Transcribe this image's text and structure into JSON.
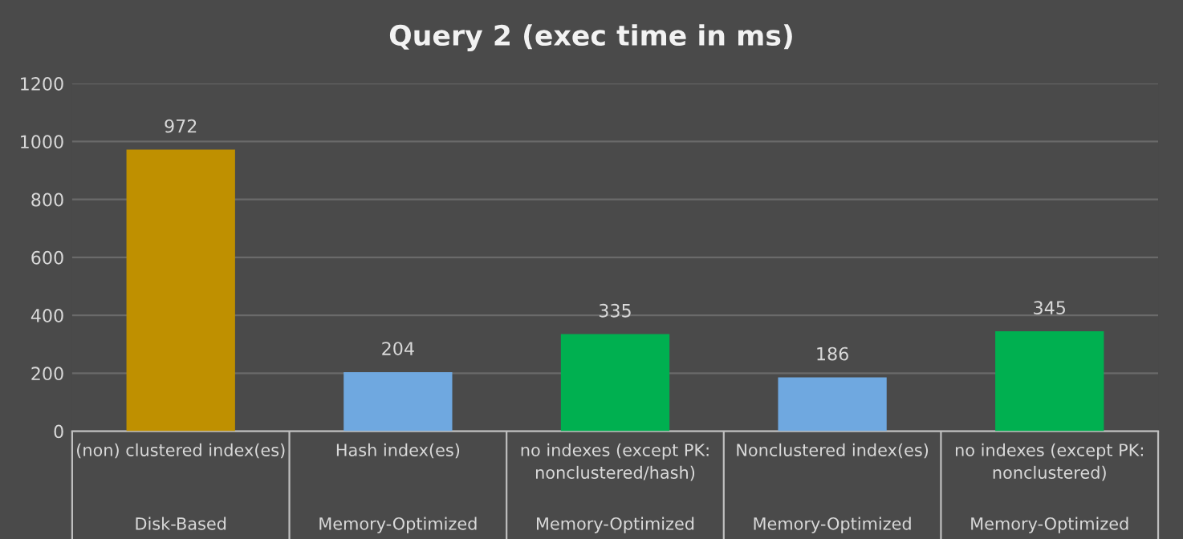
{
  "chart_data": {
    "type": "bar",
    "title": "Query 2 (exec time in ms)",
    "categories": [
      "(non) clustered index(es)\nDisk-Based",
      "Hash index(es)\nMemory-Optimized",
      "no indexes (except PK:\nnonclustered/hash)\nMemory-Optimized",
      "Nonclustered index(es)\nMemory-Optimized",
      "no indexes (except PK:\nnonclustered)\nMemory-Optimized"
    ],
    "values": [
      972,
      204,
      335,
      186,
      345
    ],
    "colors": [
      "#bf9000",
      "#6fa8e0",
      "#00b050",
      "#6fa8e0",
      "#00b050"
    ],
    "ylim": [
      0,
      1200
    ],
    "yticks": [
      0,
      200,
      400,
      600,
      800,
      1000,
      1200
    ],
    "grid": "y",
    "data_labels": true
  }
}
